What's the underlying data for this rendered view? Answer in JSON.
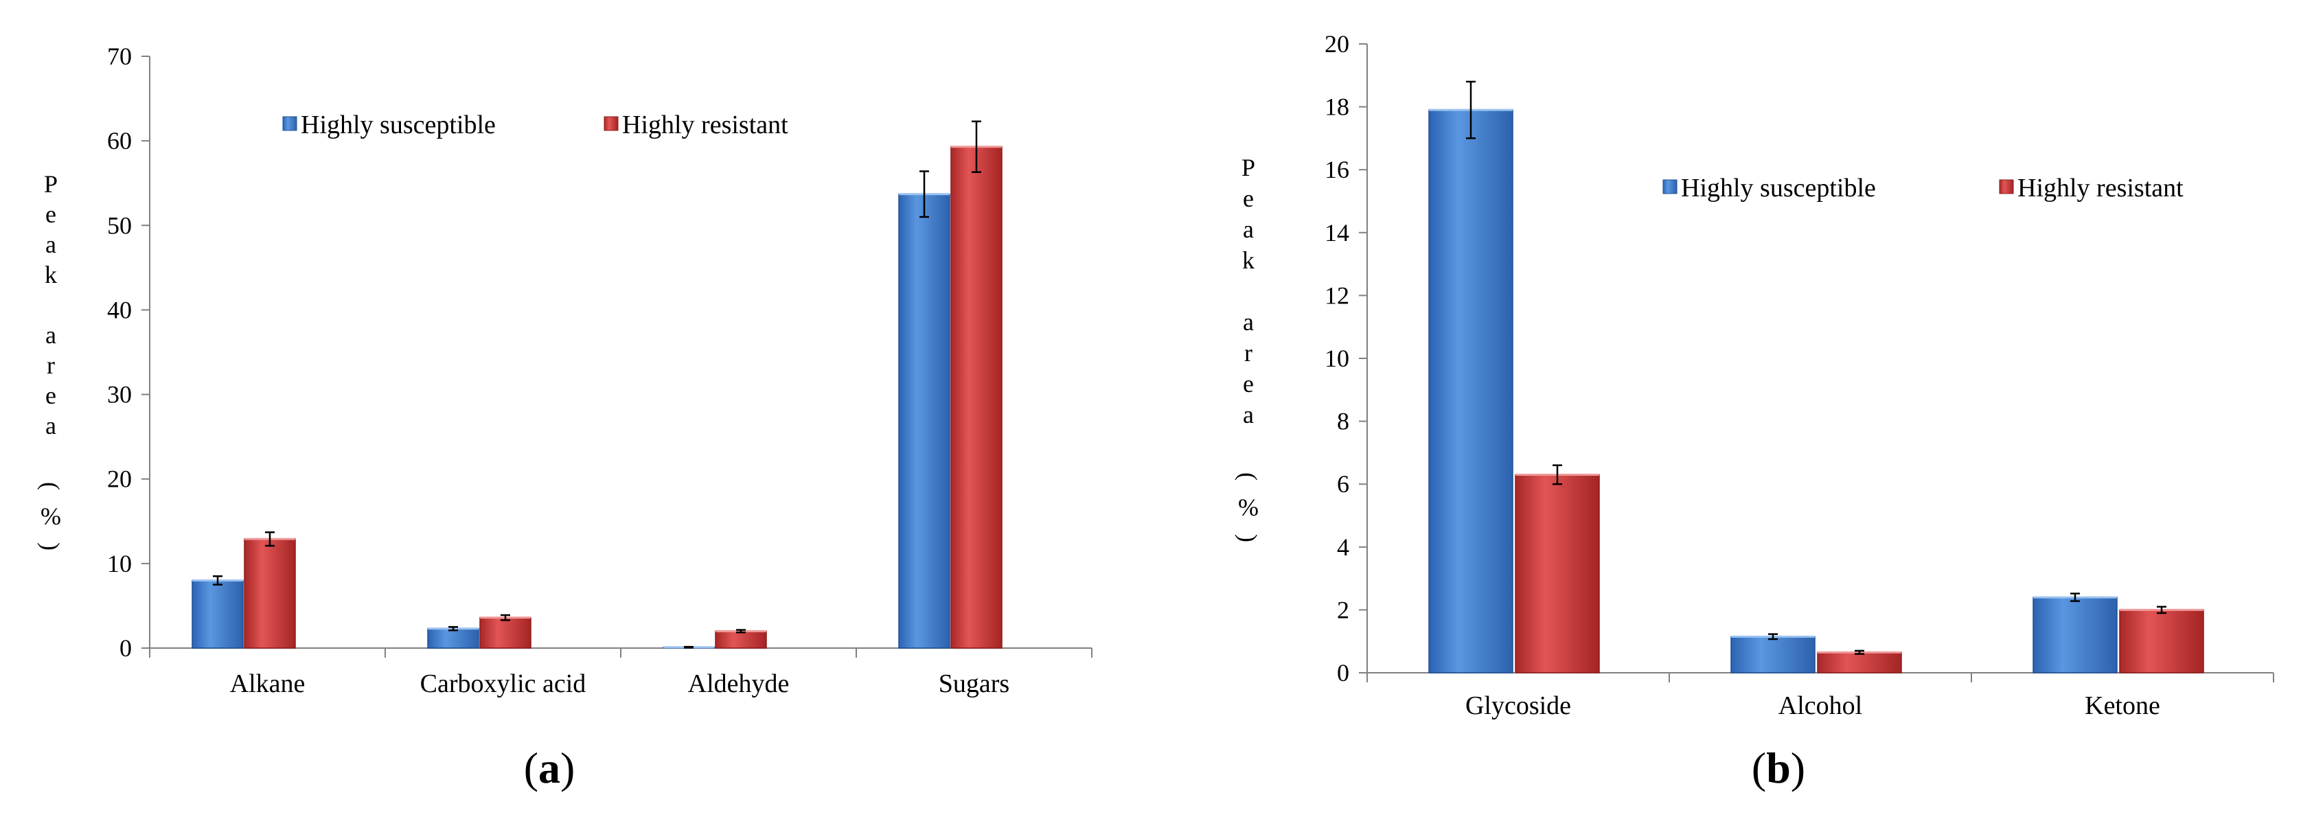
{
  "colors": {
    "susceptible": "#4a86d0",
    "susceptible_dark": "#1f4f96",
    "resistant": "#d64545",
    "resistant_dark": "#8e1c1c"
  },
  "chart_data": [
    {
      "type": "bar",
      "panel_label": "a",
      "ylabel": "Peak area (%)",
      "ylabel_glyphs": [
        "P",
        "e",
        "a",
        "k",
        "",
        "a",
        "r",
        "e",
        "a",
        "",
        "(",
        "%",
        ")"
      ],
      "ylim": [
        0,
        70
      ],
      "yticks": [
        0,
        10,
        20,
        30,
        40,
        50,
        60,
        70
      ],
      "legend_position": "top-center",
      "categories": [
        "Alkane",
        "Carboxylic acid",
        "Aldehyde",
        "Sugars"
      ],
      "series": [
        {
          "name": "Highly susceptible",
          "values": [
            8.0,
            2.3,
            0.1,
            53.7
          ],
          "errors": [
            0.5,
            0.2,
            0.05,
            2.7
          ]
        },
        {
          "name": "Highly resistant",
          "values": [
            12.9,
            3.6,
            2.0,
            59.3
          ],
          "errors": [
            0.8,
            0.3,
            0.15,
            3.0
          ]
        }
      ]
    },
    {
      "type": "bar",
      "panel_label": "b",
      "ylabel": "Peak area (%)",
      "ylabel_glyphs": [
        "P",
        "e",
        "a",
        "k",
        "",
        "a",
        "r",
        "e",
        "a",
        "",
        "(",
        "%",
        ")"
      ],
      "ylim": [
        0,
        20
      ],
      "yticks": [
        0,
        2,
        4,
        6,
        8,
        10,
        12,
        14,
        16,
        18,
        20
      ],
      "legend_position": "top-right",
      "categories": [
        "Glycoside",
        "Alcohol",
        "Ketone"
      ],
      "series": [
        {
          "name": "Highly susceptible",
          "values": [
            17.9,
            1.15,
            2.4
          ],
          "errors": [
            0.9,
            0.08,
            0.12
          ]
        },
        {
          "name": "Highly resistant",
          "values": [
            6.3,
            0.65,
            2.0
          ],
          "errors": [
            0.3,
            0.05,
            0.1
          ]
        }
      ]
    }
  ]
}
